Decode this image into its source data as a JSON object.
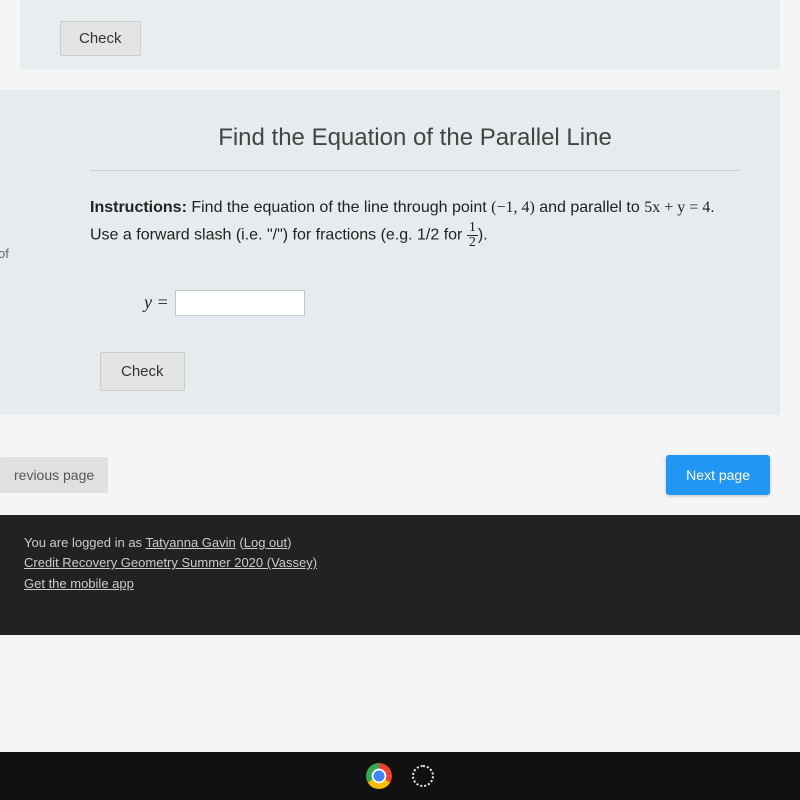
{
  "top_card": {
    "check_label": "Check"
  },
  "problem": {
    "title": "Find the Equation of the Parallel Line",
    "instructions_label": "Instructions:",
    "instructions_text_1": " Find the equation of the line through point ",
    "point": "(−1, 4)",
    "instructions_text_2": " and parallel to ",
    "given_equation": "5x + y = 4",
    "instructions_text_3": ". Use a forward slash (i.e. \"/\") for fractions (e.g. 1/2 for ",
    "frac_num": "1",
    "frac_den": "2",
    "instructions_text_4": ").",
    "answer_prefix": "y =",
    "answer_value": "",
    "check_label": "Check"
  },
  "side_label": "of",
  "nav": {
    "prev_label": "revious page",
    "next_label": "Next page"
  },
  "footer": {
    "line1_prefix": "You are logged in as ",
    "user_name": "Tatyanna Gavin",
    "line1_suffix_open": " (",
    "logout": "Log out",
    "line1_suffix_close": ")",
    "line2": "Credit Recovery Geometry Summer 2020 (Vassey)",
    "line3": "Get the mobile app"
  },
  "colors": {
    "card_bg": "#e6ecee",
    "next_btn": "#2196f3",
    "footer_bg": "#222222"
  }
}
